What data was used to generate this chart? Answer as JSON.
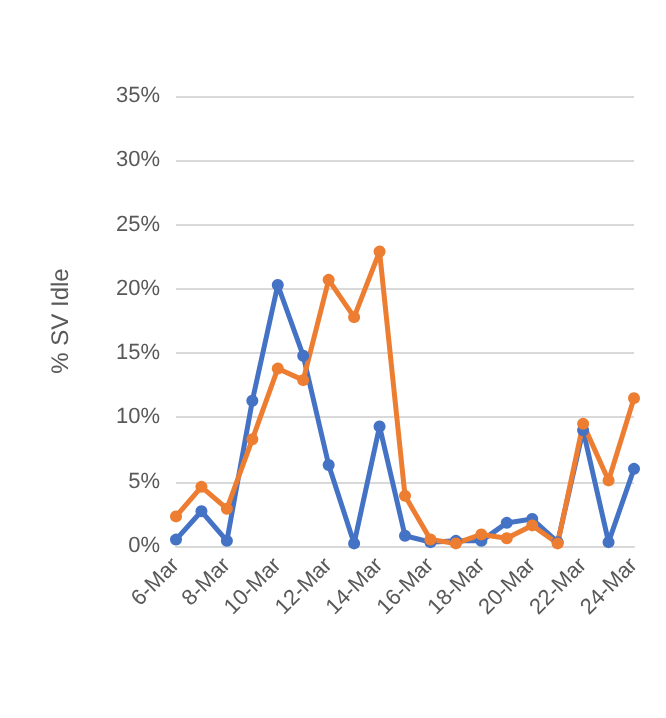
{
  "chart_data": {
    "type": "line",
    "ylabel": "% SV Idle",
    "categories": [
      "6-Mar",
      null,
      "8-Mar",
      null,
      "10-Mar",
      null,
      "12-Mar",
      null,
      "14-Mar",
      null,
      "16-Mar",
      null,
      "18-Mar",
      null,
      "20-Mar",
      null,
      "22-Mar",
      null,
      "24-Mar"
    ],
    "series": [
      {
        "color": "#4472c4",
        "values": [
          0.5,
          2.7,
          0.4,
          11.3,
          20.3,
          14.8,
          6.3,
          0.2,
          9.3,
          0.8,
          0.3,
          0.4,
          0.4,
          1.8,
          2.1,
          0.3,
          9.0,
          0.3,
          6.0
        ]
      },
      {
        "color": "#ed7d31",
        "values": [
          2.3,
          4.6,
          2.9,
          8.3,
          13.8,
          12.9,
          20.7,
          17.8,
          22.9,
          3.9,
          0.5,
          0.2,
          0.9,
          0.6,
          1.6,
          0.2,
          9.5,
          5.1,
          11.5
        ]
      }
    ],
    "ylim": [
      0,
      35
    ],
    "yticks": [
      {
        "value": 0,
        "label": "0%"
      },
      {
        "value": 5,
        "label": "5%"
      },
      {
        "value": 10,
        "label": "10%"
      },
      {
        "value": 15,
        "label": "15%"
      },
      {
        "value": 20,
        "label": "20%"
      },
      {
        "value": 25,
        "label": "25%"
      },
      {
        "value": 30,
        "label": "30%"
      },
      {
        "value": 35,
        "label": "35%"
      }
    ],
    "grid": "y",
    "marker": "circle",
    "line_style": "solid"
  }
}
